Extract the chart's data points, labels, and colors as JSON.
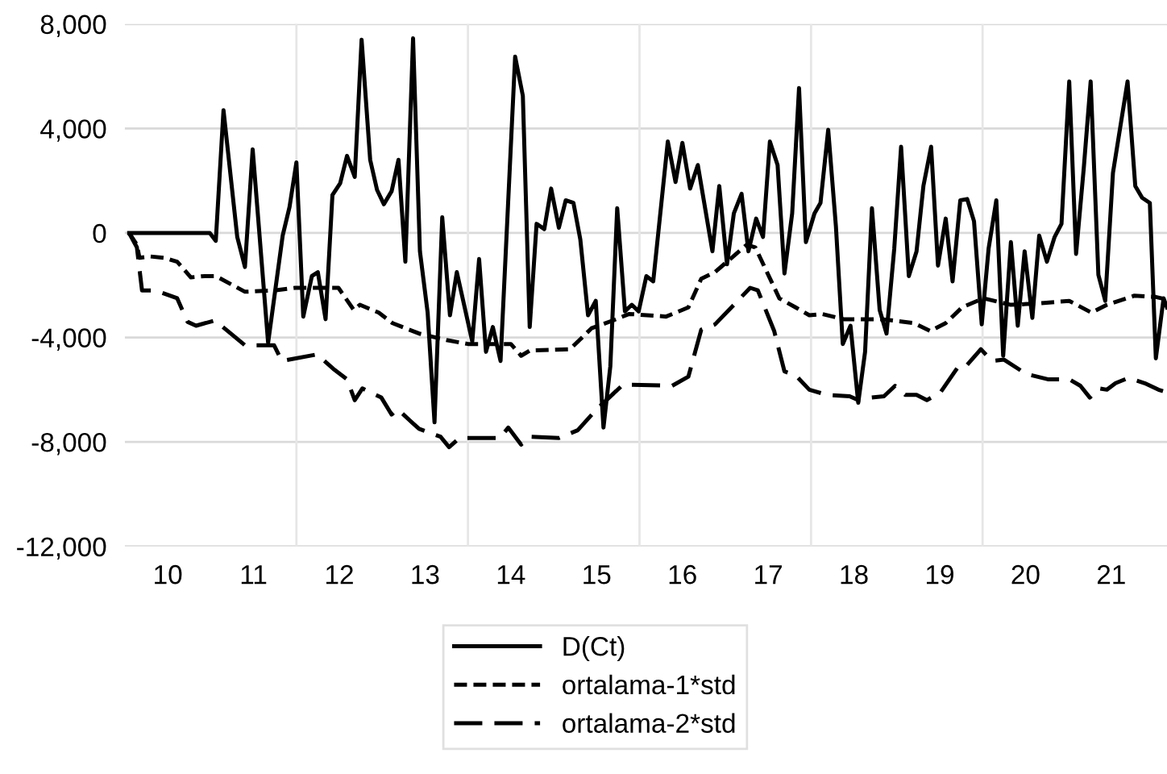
{
  "chart_data": {
    "type": "line",
    "xlim": [
      9.5,
      21.65
    ],
    "ylim": [
      -12000,
      8000
    ],
    "xticks": [
      10,
      11,
      12,
      13,
      14,
      15,
      16,
      17,
      18,
      19,
      20,
      21,
      {
        "value": 11.5,
        "label": null
      },
      {
        "value": 13.5,
        "label": null
      },
      {
        "value": 15.5,
        "label": null
      },
      {
        "value": 17.5,
        "label": null
      },
      {
        "value": 19.5,
        "label": null
      }
    ],
    "yticks": [
      {
        "value": 8000,
        "label": "8,000"
      },
      {
        "value": 4000,
        "label": "4,000"
      },
      0,
      {
        "value": -4000,
        "label": "-4,000"
      },
      {
        "value": -8000,
        "label": "-8,000"
      },
      {
        "value": -12000,
        "label": "-12,000"
      }
    ],
    "grid": true,
    "legend": "bottom",
    "marker": "none",
    "series": [
      {
        "name": "D(Ct)",
        "color": "#000000",
        "line_style": "solid",
        "x": [
          9.55,
          10.49,
          10.56,
          10.65,
          10.81,
          10.9,
          10.99,
          11.17,
          11.34,
          11.42,
          11.5,
          11.58,
          11.68,
          11.75,
          11.84,
          11.92,
          12.01,
          12.09,
          12.18,
          12.26,
          12.36,
          12.44,
          12.52,
          12.61,
          12.69,
          12.77,
          12.86,
          12.94,
          13.03,
          13.11,
          13.2,
          13.29,
          13.37,
          13.55,
          13.63,
          13.71,
          13.79,
          13.88,
          14.05,
          14.14,
          14.22,
          14.3,
          14.39,
          14.47,
          14.56,
          14.64,
          14.73,
          14.81,
          14.9,
          14.99,
          15.08,
          15.16,
          15.24,
          15.33,
          15.41,
          15.49,
          15.58,
          15.66,
          15.83,
          15.92,
          16.0,
          16.09,
          16.18,
          16.35,
          16.43,
          16.52,
          16.6,
          16.69,
          16.77,
          16.86,
          16.94,
          17.02,
          17.11,
          17.19,
          17.28,
          17.36,
          17.44,
          17.54,
          17.61,
          17.7,
          17.79,
          17.87,
          17.96,
          18.05,
          18.13,
          18.21,
          18.3,
          18.38,
          18.47,
          18.55,
          18.64,
          18.73,
          18.81,
          18.9,
          18.98,
          19.07,
          19.15,
          19.24,
          19.32,
          19.4,
          19.49,
          19.57,
          19.66,
          19.74,
          19.83,
          19.91,
          19.99,
          20.08,
          20.16,
          20.25,
          20.34,
          20.42,
          20.51,
          20.59,
          20.68,
          20.76,
          20.85,
          20.93,
          21.02,
          21.19,
          21.28,
          21.36,
          21.45,
          21.52,
          21.61,
          21.65
        ],
        "values": [
          0,
          0,
          -300,
          4700,
          -150,
          -1300,
          3200,
          -4200,
          -100,
          1000,
          2700,
          -3200,
          -1650,
          -1500,
          -3300,
          1450,
          1900,
          2950,
          2150,
          7400,
          2800,
          1650,
          1100,
          1600,
          2800,
          -1100,
          7450,
          -700,
          -3050,
          -7250,
          600,
          -3150,
          -1500,
          -4150,
          -1000,
          -4550,
          -3600,
          -4900,
          6750,
          5250,
          -3600,
          350,
          150,
          1700,
          200,
          1250,
          1150,
          -250,
          -3150,
          -2600,
          -7450,
          -5100,
          950,
          -3000,
          -2750,
          -3000,
          -1650,
          -1850,
          3500,
          1950,
          3450,
          1700,
          2600,
          -700,
          1800,
          -1200,
          750,
          1500,
          -700,
          550,
          -150,
          3500,
          2600,
          -1550,
          750,
          5550,
          -350,
          750,
          1150,
          3950,
          250,
          -4250,
          -3550,
          -6500,
          -4550,
          950,
          -2950,
          -3850,
          -600,
          3300,
          -1650,
          -700,
          1800,
          3300,
          -1250,
          550,
          -1850,
          1250,
          1300,
          450,
          -3500,
          -600,
          1250,
          -4700,
          -350,
          -3550,
          -700,
          -3250,
          -100,
          -1100,
          -150,
          350,
          5800,
          -800,
          2500,
          5800,
          -1600,
          -2600,
          2300,
          5800,
          1800,
          1350,
          1150,
          -4800,
          -2500,
          -2850
        ]
      },
      {
        "name": "ortalama-1*std",
        "color": "#000000",
        "line_style": "dashed",
        "x": [
          9.55,
          9.64,
          9.67,
          9.8,
          9.96,
          10.11,
          10.27,
          10.43,
          10.56,
          10.9,
          11.24,
          11.49,
          11.99,
          12.17,
          12.24,
          12.46,
          12.62,
          12.93,
          13.25,
          13.5,
          14.0,
          14.12,
          14.22,
          14.69,
          14.94,
          15.19,
          15.38,
          15.81,
          16.07,
          16.22,
          16.38,
          16.75,
          16.85,
          17.13,
          17.32,
          17.48,
          17.63,
          17.88,
          18.32,
          18.7,
          18.89,
          19.07,
          19.26,
          19.51,
          19.83,
          20.14,
          20.51,
          20.77,
          20.95,
          21.27,
          21.52,
          21.65
        ],
        "values": [
          0,
          -450,
          -950,
          -900,
          -950,
          -1100,
          -1700,
          -1650,
          -1650,
          -2250,
          -2200,
          -2100,
          -2100,
          -2950,
          -2750,
          -3050,
          -3450,
          -3850,
          -4100,
          -4250,
          -4250,
          -4700,
          -4500,
          -4450,
          -3650,
          -3350,
          -3100,
          -3200,
          -2850,
          -1750,
          -1500,
          -450,
          -550,
          -2500,
          -2850,
          -3150,
          -3100,
          -3300,
          -3300,
          -3450,
          -3750,
          -3450,
          -2850,
          -2500,
          -2750,
          -2700,
          -2600,
          -3050,
          -2750,
          -2400,
          -2450,
          -2550
        ]
      },
      {
        "name": "ortalama-2*std",
        "color": "#000000",
        "line_style": "dashed",
        "x": [
          9.55,
          9.64,
          9.7,
          9.86,
          10.11,
          10.23,
          10.33,
          10.55,
          10.68,
          10.9,
          11.24,
          11.33,
          11.74,
          11.93,
          12.09,
          12.18,
          12.27,
          12.49,
          12.61,
          12.68,
          12.93,
          13.18,
          13.28,
          13.4,
          13.87,
          13.97,
          14.12,
          14.22,
          14.56,
          14.78,
          15.0,
          15.31,
          15.88,
          16.07,
          16.22,
          16.38,
          16.6,
          16.79,
          16.88,
          17.07,
          17.19,
          17.32,
          17.48,
          17.69,
          17.95,
          18.05,
          18.2,
          18.35,
          18.48,
          18.6,
          18.73,
          18.85,
          19.01,
          19.23,
          19.32,
          19.48,
          19.61,
          19.75,
          20.01,
          20.26,
          20.51,
          20.64,
          20.75,
          20.86,
          20.95,
          21.05,
          21.2,
          21.39,
          21.55,
          21.65
        ],
        "values": [
          0,
          -550,
          -2200,
          -2200,
          -2500,
          -3400,
          -3550,
          -3350,
          -3700,
          -4300,
          -4300,
          -4900,
          -4650,
          -5200,
          -5600,
          -6400,
          -5950,
          -6300,
          -6950,
          -6750,
          -7500,
          -7800,
          -8200,
          -7850,
          -7850,
          -7450,
          -8100,
          -7800,
          -7850,
          -7550,
          -6750,
          -5800,
          -5850,
          -5500,
          -3700,
          -3500,
          -2750,
          -2100,
          -2200,
          -3750,
          -5300,
          -5450,
          -6000,
          -6200,
          -6250,
          -6400,
          -6300,
          -6250,
          -5850,
          -6200,
          -6200,
          -6400,
          -6100,
          -5050,
          -5050,
          -4450,
          -4900,
          -4850,
          -5400,
          -5600,
          -5600,
          -5850,
          -6300,
          -5950,
          -6000,
          -5750,
          -5550,
          -5750,
          -6000,
          -6100
        ]
      }
    ]
  }
}
